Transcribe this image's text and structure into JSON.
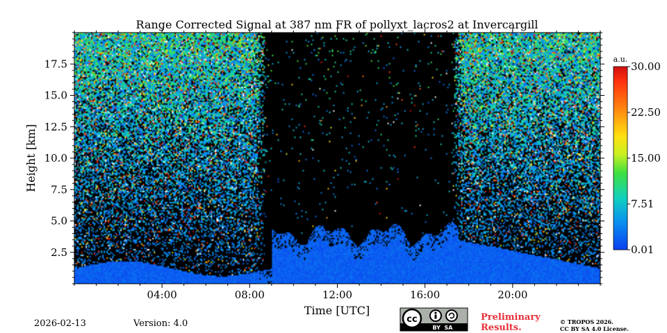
{
  "chart_data": {
    "type": "heatmap",
    "title": "Range Corrected Signal at 387 nm FR of pollyxt_lacros2 at Invercargill",
    "xlabel": "Time [UTC]",
    "ylabel": "Height [km]",
    "xlim_hours": [
      0,
      24
    ],
    "ylim_km": [
      0,
      20
    ],
    "x_ticks": [
      {
        "value": 4,
        "label": "04:00"
      },
      {
        "value": 8,
        "label": "08:00"
      },
      {
        "value": 12,
        "label": "12:00"
      },
      {
        "value": 16,
        "label": "16:00"
      },
      {
        "value": 20,
        "label": "20:00"
      }
    ],
    "y_ticks": [
      {
        "value": 2.5,
        "label": "2.5"
      },
      {
        "value": 5.0,
        "label": "5.0"
      },
      {
        "value": 7.5,
        "label": "7.5"
      },
      {
        "value": 10.0,
        "label": "10.0"
      },
      {
        "value": 12.5,
        "label": "12.5"
      },
      {
        "value": 15.0,
        "label": "15.0"
      },
      {
        "value": 17.5,
        "label": "17.5"
      }
    ],
    "colorbar": {
      "unit": "a.u.",
      "range": [
        0.01,
        30.0
      ],
      "ticks": [
        {
          "value": 0.01,
          "label": "0.01"
        },
        {
          "value": 7.51,
          "label": "7.51"
        },
        {
          "value": 15.0,
          "label": "15.00"
        },
        {
          "value": 22.5,
          "label": "22.50"
        },
        {
          "value": 30.0,
          "label": "30.00"
        }
      ],
      "colors": [
        "#0a3ff0",
        "#0a8ff0",
        "#10d0c0",
        "#40e040",
        "#c8f020",
        "#ffe010",
        "#ff8010",
        "#ff3010",
        "#d01010"
      ]
    }
  },
  "footer": {
    "date": "2026-02-13",
    "version": "Version: 4.0",
    "license_badge": "BY  SA",
    "preliminary_line1": "Preliminary",
    "preliminary_line2": "Results.",
    "preliminary_color": "#e8303a",
    "copyright_line1": "© TROPOS 2026.",
    "copyright_line2": "CC BY SA 4.0 License."
  }
}
